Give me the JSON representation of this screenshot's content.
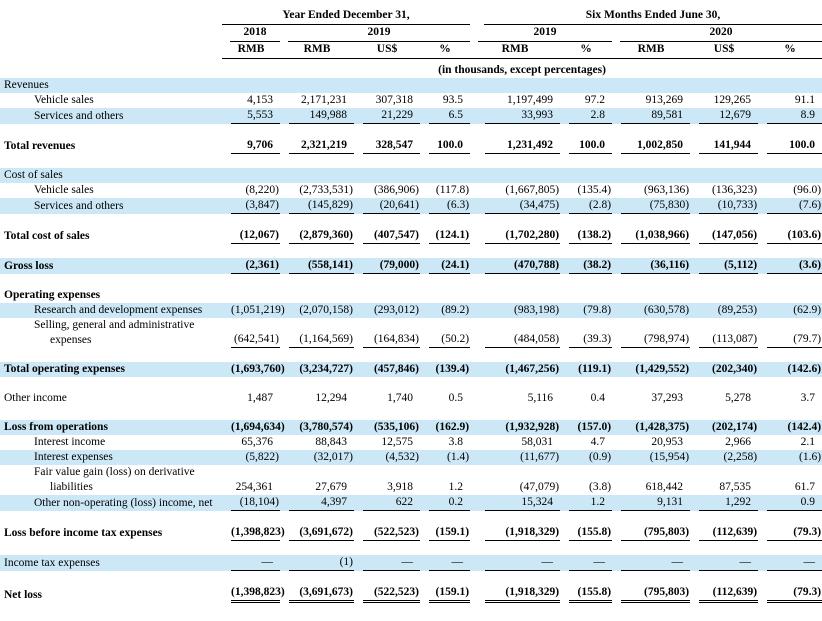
{
  "header": {
    "period_year_ended": "Year Ended December 31,",
    "period_six_months": "Six Months Ended June 30,",
    "col_2018": "2018",
    "col_2019": "2019",
    "col_2019_six": "2019",
    "col_2020": "2020",
    "currencies": [
      "RMB",
      "RMB",
      "US$",
      "%",
      "RMB",
      "%",
      "RMB",
      "US$",
      "%"
    ],
    "note": "(in thousands, except percentages)"
  },
  "colors": {
    "row_highlight": "#cce8f7",
    "text": "#000000"
  },
  "rows": [
    {
      "label": "Revenues",
      "highlight": true,
      "bold": false,
      "values": []
    },
    {
      "label": "Vehicle sales",
      "indent": 1,
      "values": [
        "4,153",
        "2,171,231",
        "307,318",
        "93.5",
        "1,197,499",
        "97.2",
        "913,269",
        "129,265",
        "91.1"
      ]
    },
    {
      "label": "Services and others",
      "indent": 1,
      "highlight": true,
      "underline": "single",
      "values": [
        "5,553",
        "149,988",
        "21,229",
        "6.5",
        "33,993",
        "2.8",
        "89,581",
        "12,679",
        "8.9"
      ]
    },
    {
      "spacer": true
    },
    {
      "label": "Total revenues",
      "bold": true,
      "underline": "single",
      "values": [
        "9,706",
        "2,321,219",
        "328,547",
        "100.0",
        "1,231,492",
        "100.0",
        "1,002,850",
        "141,944",
        "100.0"
      ]
    },
    {
      "spacer": true
    },
    {
      "label": "Cost of sales",
      "highlight": true,
      "values": []
    },
    {
      "label": "Vehicle sales",
      "indent": 1,
      "values": [
        "(8,220)",
        "(2,733,531)",
        "(386,906)",
        "(117.8)",
        "(1,667,805)",
        "(135.4)",
        "(963,136)",
        "(136,323)",
        "(96.0)"
      ]
    },
    {
      "label": "Services and others",
      "indent": 1,
      "highlight": true,
      "underline": "single",
      "values": [
        "(3,847)",
        "(145,829)",
        "(20,641)",
        "(6.3)",
        "(34,475)",
        "(2.8)",
        "(75,830)",
        "(10,733)",
        "(7.6)"
      ]
    },
    {
      "spacer": true
    },
    {
      "label": "Total cost of sales",
      "bold": true,
      "underline": "single",
      "values": [
        "(12,067)",
        "(2,879,360)",
        "(407,547)",
        "(124.1)",
        "(1,702,280)",
        "(138.2)",
        "(1,038,966)",
        "(147,056)",
        "(103.6)"
      ]
    },
    {
      "spacer": true
    },
    {
      "label": "Gross loss",
      "highlight": true,
      "bold": true,
      "underline": "single",
      "values": [
        "(2,361)",
        "(558,141)",
        "(79,000)",
        "(24.1)",
        "(470,788)",
        "(38.2)",
        "(36,116)",
        "(5,112)",
        "(3.6)"
      ]
    },
    {
      "spacer": true
    },
    {
      "label": "Operating expenses",
      "bold": true,
      "values": []
    },
    {
      "label": "Research and development expenses",
      "indent": 1,
      "highlight": true,
      "values": [
        "(1,051,219)",
        "(2,070,158)",
        "(293,012)",
        "(89.2)",
        "(983,198)",
        "(79.8)",
        "(630,578)",
        "(89,253)",
        "(62.9)"
      ]
    },
    {
      "label": "Selling, general and administrative",
      "label2": "expenses",
      "indent": 1,
      "underline": "single",
      "values": [
        "(642,541)",
        "(1,164,569)",
        "(164,834)",
        "(50.2)",
        "(484,058)",
        "(39.3)",
        "(798,974)",
        "(113,087)",
        "(79.7)"
      ]
    },
    {
      "spacer": true
    },
    {
      "label": "Total operating expenses",
      "highlight": true,
      "bold": true,
      "values": [
        "(1,693,760)",
        "(3,234,727)",
        "(457,846)",
        "(139.4)",
        "(1,467,256)",
        "(119.1)",
        "(1,429,552)",
        "(202,340)",
        "(142.6)"
      ]
    },
    {
      "spacer": true
    },
    {
      "label": "Other income",
      "values": [
        "1,487",
        "12,294",
        "1,740",
        "0.5",
        "5,116",
        "0.4",
        "37,293",
        "5,278",
        "3.7"
      ]
    },
    {
      "spacer": true
    },
    {
      "label": "Loss from operations",
      "highlight": true,
      "bold": true,
      "values": [
        "(1,694,634)",
        "(3,780,574)",
        "(535,106)",
        "(162.9)",
        "(1,932,928)",
        "(157.0)",
        "(1,428,375)",
        "(202,174)",
        "(142.4)"
      ]
    },
    {
      "label": "Interest income",
      "indent": 1,
      "values": [
        "65,376",
        "88,843",
        "12,575",
        "3.8",
        "58,031",
        "4.7",
        "20,953",
        "2,966",
        "2.1"
      ]
    },
    {
      "label": "Interest expenses",
      "indent": 1,
      "highlight": true,
      "values": [
        "(5,822)",
        "(32,017)",
        "(4,532)",
        "(1.4)",
        "(11,677)",
        "(0.9)",
        "(15,954)",
        "(2,258)",
        "(1.6)"
      ]
    },
    {
      "label": "Fair value gain (loss) on derivative",
      "label2": "liabilities",
      "indent": 1,
      "values": [
        "254,361",
        "27,679",
        "3,918",
        "1.2",
        "(47,079)",
        "(3.8)",
        "618,442",
        "87,535",
        "61.7"
      ]
    },
    {
      "label": "Other non-operating (loss) income, net",
      "indent": 1,
      "highlight": true,
      "underline": "single",
      "values": [
        "(18,104)",
        "4,397",
        "622",
        "0.2",
        "15,324",
        "1.2",
        "9,131",
        "1,292",
        "0.9"
      ]
    },
    {
      "spacer": true
    },
    {
      "label": "Loss before income tax expenses",
      "bold": true,
      "underline": "single",
      "values": [
        "(1,398,823)",
        "(3,691,672)",
        "(522,523)",
        "(159.1)",
        "(1,918,329)",
        "(155.8)",
        "(795,803)",
        "(112,639)",
        "(79.3)"
      ]
    },
    {
      "spacer": true
    },
    {
      "label": "Income tax expenses",
      "highlight": true,
      "underline": "single",
      "values": [
        "—",
        "(1)",
        "—",
        "—",
        "—",
        "—",
        "—",
        "—",
        "—"
      ]
    },
    {
      "spacer": true
    },
    {
      "label": "Net loss",
      "bold": true,
      "underline": "double",
      "values": [
        "(1,398,823)",
        "(3,691,673)",
        "(522,523)",
        "(159.1)",
        "(1,918,329)",
        "(155.8)",
        "(795,803)",
        "(112,639)",
        "(79.3)"
      ]
    }
  ]
}
